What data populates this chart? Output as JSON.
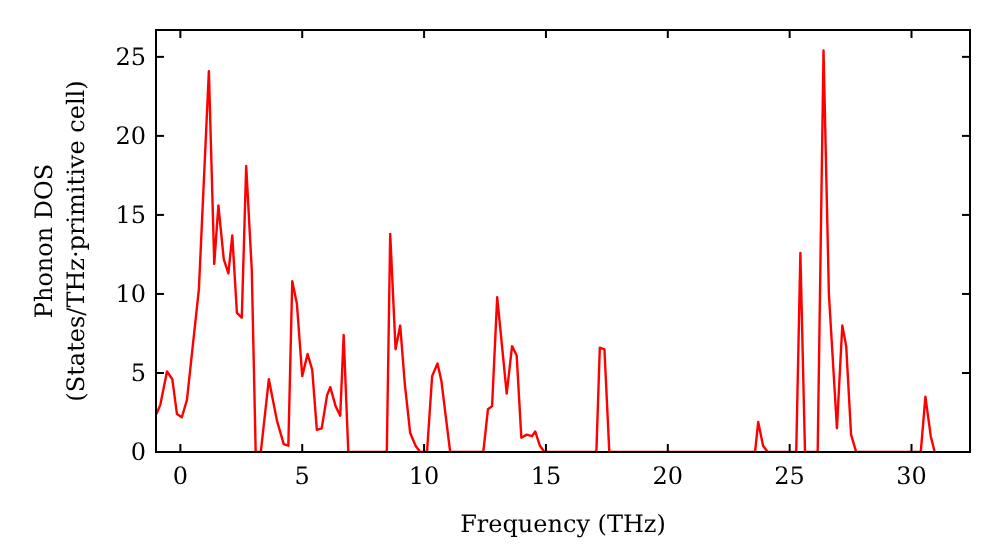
{
  "chart_data": {
    "type": "line",
    "xlabel": "Frequency (THz)",
    "ylabel": "Phonon DOS\n(States/THz·primitive cell)",
    "xlim": [
      -1,
      32.4
    ],
    "ylim": [
      0,
      26.7
    ],
    "xticks": [
      0,
      5,
      10,
      15,
      20,
      25,
      30
    ],
    "yticks": [
      0,
      5,
      10,
      15,
      20,
      25
    ],
    "grid": false,
    "series": [
      {
        "color": "#ff0000",
        "x": [
          -0.98,
          -0.82,
          -0.55,
          -0.33,
          -0.14,
          0.06,
          0.27,
          0.76,
          1.17,
          1.39,
          1.56,
          1.78,
          1.97,
          2.13,
          2.32,
          2.52,
          2.7,
          2.93,
          3.09,
          3.3,
          3.63,
          3.96,
          4.24,
          4.43,
          4.59,
          4.78,
          5.0,
          5.22,
          5.41,
          5.6,
          5.8,
          6.02,
          6.15,
          6.37,
          6.56,
          6.7,
          6.89,
          8.47,
          8.61,
          8.83,
          9.02,
          9.21,
          9.43,
          9.65,
          9.84,
          10.12,
          10.33,
          10.55,
          10.71,
          11.07,
          12.43,
          12.62,
          12.79,
          13.0,
          13.39,
          13.61,
          13.8,
          13.99,
          14.21,
          14.43,
          14.56,
          14.75,
          14.94,
          17.07,
          17.21,
          17.4,
          17.6,
          23.58,
          23.71,
          23.91,
          24.1,
          25.27,
          25.44,
          25.63,
          26.15,
          26.39,
          26.61,
          26.94,
          27.16,
          27.32,
          27.52,
          27.73,
          30.38,
          30.57,
          30.79,
          30.95
        ],
        "values": [
          2.4,
          3.0,
          5.1,
          4.6,
          2.4,
          2.2,
          3.3,
          10.3,
          24.1,
          11.9,
          15.6,
          12.2,
          11.3,
          13.7,
          8.8,
          8.5,
          18.1,
          11.5,
          0,
          0,
          4.6,
          2.0,
          0.5,
          0.4,
          10.8,
          9.4,
          4.8,
          6.2,
          5.2,
          1.4,
          1.5,
          3.6,
          4.1,
          2.9,
          2.3,
          7.4,
          0,
          0,
          13.8,
          6.5,
          8.0,
          4.3,
          1.2,
          0.4,
          0,
          0,
          4.8,
          5.6,
          4.5,
          0,
          0,
          2.7,
          2.9,
          9.8,
          3.7,
          6.7,
          6.1,
          0.9,
          1.1,
          1.0,
          1.3,
          0.4,
          0,
          0,
          6.6,
          6.5,
          0,
          0,
          1.9,
          0.4,
          0,
          0,
          12.6,
          0,
          0,
          25.4,
          10.0,
          1.5,
          8.0,
          6.7,
          1.1,
          0,
          0,
          3.5,
          1.0,
          0
        ]
      }
    ]
  }
}
